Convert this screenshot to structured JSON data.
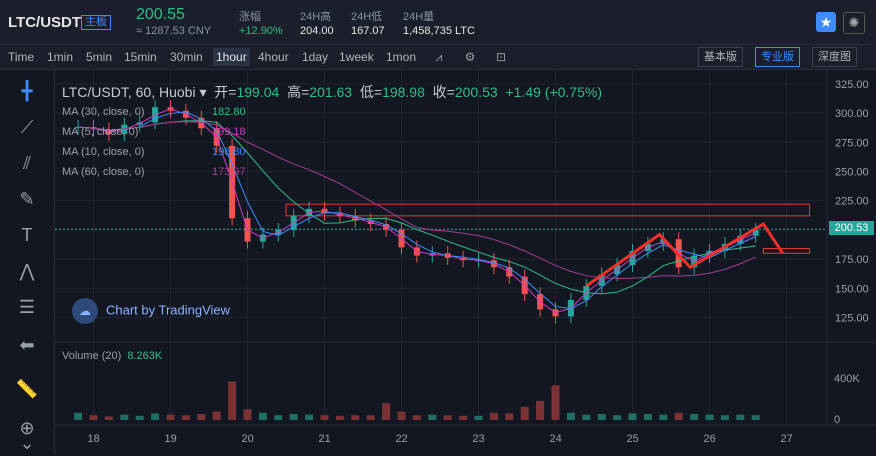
{
  "header": {
    "pair": "LTC/USDT",
    "badge": "主板",
    "price": "200.55",
    "cny": "≈ 1287.53 CNY",
    "stats": [
      {
        "label": "涨幅",
        "value": "+12.90%"
      },
      {
        "label": "24H高",
        "value": "204.00"
      },
      {
        "label": "24H低",
        "value": "167.07"
      },
      {
        "label": "24H量",
        "value": "1,458,735 LTC"
      }
    ]
  },
  "toolbar": {
    "timeframes": [
      "Time",
      "1min",
      "5min",
      "15min",
      "30min",
      "1hour",
      "4hour",
      "1day",
      "1week",
      "1mon"
    ],
    "active": "1hour",
    "views": [
      "基本版",
      "专业版",
      "深度图"
    ]
  },
  "legend": {
    "symbol": "LTC/USDT, 60, Huobi",
    "open_label": "开=",
    "open": "199.04",
    "high_label": "高=",
    "high": "201.63",
    "low_label": "低=",
    "low": "198.98",
    "close_label": "收=",
    "close": "200.53",
    "change": "+1.49 (+0.75%)"
  },
  "mas": [
    {
      "label": "MA (30, close, 0)",
      "value": "182.80",
      "color": "#2ebd85"
    },
    {
      "label": "MA (5, close, 0)",
      "value": "199.18",
      "color": "#d138c4"
    },
    {
      "label": "MA (10, close, 0)",
      "value": "196.80",
      "color": "#3d8bfd"
    },
    {
      "label": "MA (60, close, 0)",
      "value": "173.97",
      "color": "#a13f8d"
    }
  ],
  "watermark": "Chart by TradingView",
  "volume": {
    "label": "Volume (20)",
    "value": "8.263K",
    "axis_tick": "400K",
    "axis_zero": "0"
  },
  "current_price": "200.53",
  "chart_data": {
    "type": "line",
    "title": "",
    "x": [
      17.8,
      18,
      18.2,
      18.4,
      18.6,
      18.8,
      19,
      19.2,
      19.4,
      19.6,
      19.8,
      20,
      20.2,
      20.4,
      20.6,
      20.8,
      21,
      21.2,
      21.4,
      21.6,
      21.8,
      22,
      22.2,
      22.4,
      22.6,
      22.8,
      23,
      23.2,
      23.4,
      23.6,
      23.8,
      24,
      24.2,
      24.4,
      24.6,
      24.8,
      25,
      25.2,
      25.4,
      25.6,
      25.8,
      26,
      26.2,
      26.4,
      26.6
    ],
    "series": [
      {
        "values": [
          288,
          286,
          282,
          290,
          292,
          305,
          302,
          296,
          287,
          272,
          210,
          190,
          196,
          200,
          212,
          218,
          214,
          212,
          208,
          205,
          200,
          185,
          178,
          180,
          176,
          174,
          174,
          168,
          160,
          145,
          132,
          126,
          140,
          152,
          162,
          170,
          182,
          188,
          192,
          168,
          178,
          182,
          188,
          195,
          200
        ]
      }
    ],
    "xticks": [
      "18",
      "19",
      "20",
      "21",
      "22",
      "23",
      "24",
      "25",
      "26",
      "27"
    ],
    "yticks": [
      "325.00",
      "300.00",
      "275.00",
      "250.00",
      "225.00",
      "200.00",
      "175.00",
      "150.00",
      "125.00"
    ],
    "ylim": [
      110,
      330
    ],
    "volume": [
      60,
      40,
      30,
      45,
      35,
      55,
      45,
      40,
      50,
      70,
      320,
      90,
      60,
      40,
      50,
      45,
      40,
      35,
      40,
      40,
      140,
      70,
      40,
      45,
      40,
      35,
      35,
      60,
      55,
      110,
      160,
      290,
      60,
      45,
      50,
      40,
      55,
      50,
      45,
      60,
      50,
      45,
      40,
      45,
      40
    ]
  }
}
